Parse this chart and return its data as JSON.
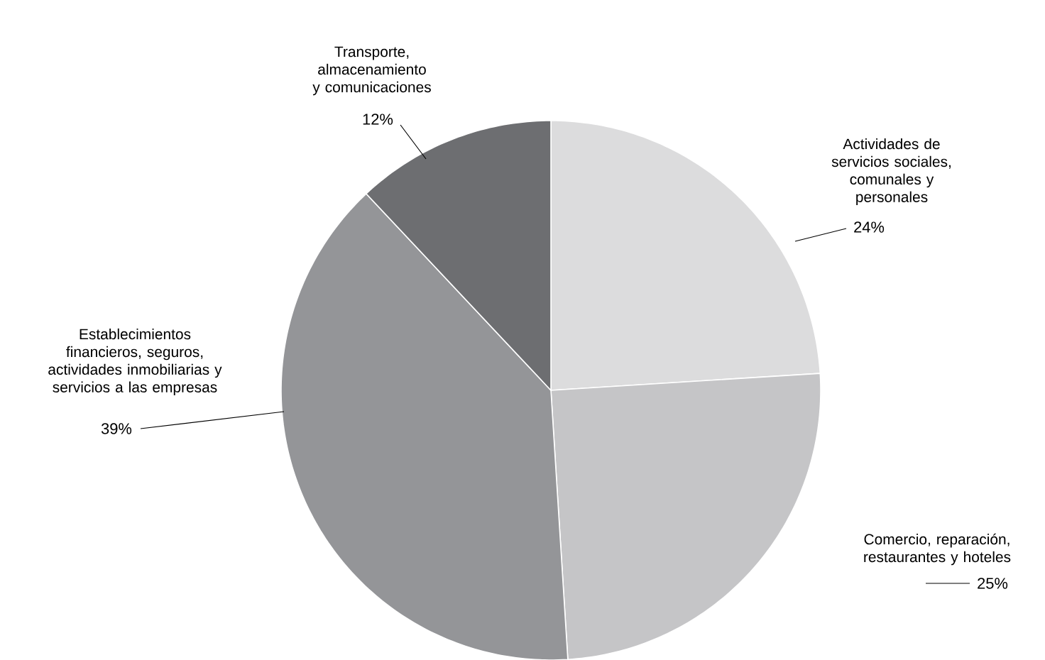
{
  "chart_data": {
    "type": "pie",
    "categories": [
      "Actividades de servicios sociales, comunales y personales",
      "Comercio, reparación, restaurantes y hoteles",
      "Establecimientos financieros, seguros, actividades inmobiliarias y servicios a las empresas",
      "Transporte, almacenamiento y comunicaciones"
    ],
    "values": [
      24,
      25,
      39,
      12
    ],
    "colors": [
      "#dcdcdd",
      "#c5c5c7",
      "#949598",
      "#6d6e71"
    ],
    "value_labels": [
      "24%",
      "25%",
      "39%",
      "12%"
    ]
  }
}
